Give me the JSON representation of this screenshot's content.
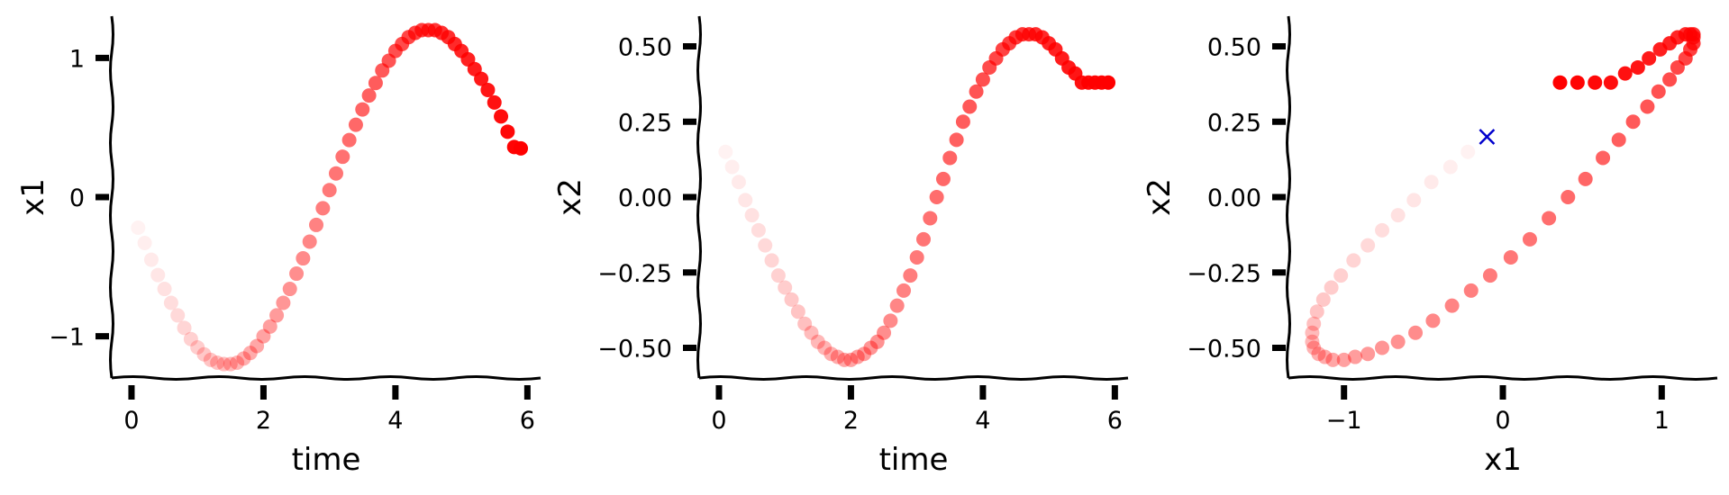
{
  "chart_data": [
    {
      "type": "scatter",
      "xlabel": "time",
      "ylabel": "x1",
      "xlim": [
        -0.3,
        6.2
      ],
      "ylim": [
        -1.3,
        1.3
      ],
      "xticks": [
        0,
        2,
        4,
        6
      ],
      "xtick_labels": [
        "0",
        "2",
        "4",
        "6"
      ],
      "yticks": [
        -1,
        0,
        1
      ],
      "ytick_labels": [
        "−1",
        "0",
        "1"
      ],
      "grid": false,
      "legend": "none",
      "marker_color": "#ff0000",
      "opacity_gradient": "increasing with time, from faint to opaque",
      "x": [
        0.1,
        0.2,
        0.3,
        0.4,
        0.5,
        0.6,
        0.7,
        0.8,
        0.9,
        1.0,
        1.1,
        1.2,
        1.3,
        1.4,
        1.5,
        1.6,
        1.7,
        1.8,
        1.9,
        2.0,
        2.1,
        2.2,
        2.3,
        2.4,
        2.5,
        2.6,
        2.7,
        2.8,
        2.9,
        3.0,
        3.1,
        3.2,
        3.3,
        3.4,
        3.5,
        3.6,
        3.7,
        3.8,
        3.9,
        4.0,
        4.1,
        4.2,
        4.3,
        4.4,
        4.5,
        4.6,
        4.7,
        4.8,
        4.9,
        5.0,
        5.1,
        5.2,
        5.3,
        5.4,
        5.5,
        5.6,
        5.7,
        5.8,
        5.9
      ],
      "y": [
        -0.22,
        -0.33,
        -0.45,
        -0.56,
        -0.66,
        -0.76,
        -0.85,
        -0.94,
        -1.02,
        -1.08,
        -1.13,
        -1.17,
        -1.19,
        -1.2,
        -1.2,
        -1.19,
        -1.16,
        -1.12,
        -1.07,
        -1.0,
        -0.93,
        -0.85,
        -0.76,
        -0.66,
        -0.55,
        -0.44,
        -0.32,
        -0.2,
        -0.08,
        0.05,
        0.17,
        0.29,
        0.41,
        0.52,
        0.63,
        0.73,
        0.82,
        0.91,
        0.98,
        1.05,
        1.1,
        1.15,
        1.18,
        1.2,
        1.2,
        1.2,
        1.18,
        1.15,
        1.1,
        1.05,
        0.99,
        0.92,
        0.85,
        0.77,
        0.68,
        0.58,
        0.47,
        0.36,
        0.35
      ]
    },
    {
      "type": "scatter",
      "xlabel": "time",
      "ylabel": "x2",
      "xlim": [
        -0.3,
        6.2
      ],
      "ylim": [
        -0.6,
        0.6
      ],
      "xticks": [
        0,
        2,
        4,
        6
      ],
      "xtick_labels": [
        "0",
        "2",
        "4",
        "6"
      ],
      "yticks": [
        -0.5,
        -0.25,
        0,
        0.25,
        0.5
      ],
      "ytick_labels": [
        "−0.50",
        "−0.25",
        "0.00",
        "0.25",
        "0.50"
      ],
      "grid": false,
      "legend": "none",
      "marker_color": "#ff0000",
      "opacity_gradient": "increasing with time, from faint to opaque",
      "x": [
        0.1,
        0.2,
        0.3,
        0.4,
        0.5,
        0.6,
        0.7,
        0.8,
        0.9,
        1.0,
        1.1,
        1.2,
        1.3,
        1.4,
        1.5,
        1.6,
        1.7,
        1.8,
        1.9,
        2.0,
        2.1,
        2.2,
        2.3,
        2.4,
        2.5,
        2.6,
        2.7,
        2.8,
        2.9,
        3.0,
        3.1,
        3.2,
        3.3,
        3.4,
        3.5,
        3.6,
        3.7,
        3.8,
        3.9,
        4.0,
        4.1,
        4.2,
        4.3,
        4.4,
        4.5,
        4.6,
        4.7,
        4.8,
        4.9,
        5.0,
        5.1,
        5.2,
        5.3,
        5.4,
        5.5,
        5.6,
        5.7,
        5.8,
        5.9
      ],
      "y": [
        0.15,
        0.1,
        0.05,
        -0.01,
        -0.06,
        -0.11,
        -0.16,
        -0.21,
        -0.26,
        -0.3,
        -0.34,
        -0.38,
        -0.42,
        -0.45,
        -0.48,
        -0.5,
        -0.52,
        -0.53,
        -0.54,
        -0.54,
        -0.53,
        -0.52,
        -0.5,
        -0.48,
        -0.45,
        -0.41,
        -0.36,
        -0.31,
        -0.26,
        -0.2,
        -0.14,
        -0.07,
        0.0,
        0.06,
        0.13,
        0.19,
        0.25,
        0.3,
        0.35,
        0.39,
        0.43,
        0.46,
        0.49,
        0.51,
        0.53,
        0.54,
        0.54,
        0.54,
        0.53,
        0.51,
        0.49,
        0.46,
        0.43,
        0.41,
        0.38,
        0.38,
        0.38,
        0.38,
        0.38
      ]
    },
    {
      "type": "scatter",
      "xlabel": "x1",
      "ylabel": "x2",
      "xlim": [
        -1.35,
        1.35
      ],
      "ylim": [
        -0.6,
        0.6
      ],
      "xticks": [
        -1,
        0,
        1
      ],
      "xtick_labels": [
        "−1",
        "0",
        "1"
      ],
      "yticks": [
        -0.5,
        -0.25,
        0,
        0.25,
        0.5
      ],
      "ytick_labels": [
        "−0.50",
        "−0.25",
        "0.00",
        "0.25",
        "0.50"
      ],
      "grid": false,
      "legend": "none",
      "marker_color": "#ff0000",
      "opacity_gradient": "increasing along trajectory, from faint to opaque",
      "x": [
        -0.22,
        -0.33,
        -0.45,
        -0.56,
        -0.66,
        -0.76,
        -0.85,
        -0.94,
        -1.02,
        -1.08,
        -1.13,
        -1.17,
        -1.19,
        -1.2,
        -1.2,
        -1.19,
        -1.16,
        -1.12,
        -1.07,
        -1.0,
        -0.93,
        -0.85,
        -0.76,
        -0.66,
        -0.55,
        -0.44,
        -0.32,
        -0.2,
        -0.08,
        0.05,
        0.17,
        0.29,
        0.41,
        0.52,
        0.63,
        0.73,
        0.82,
        0.91,
        0.98,
        1.05,
        1.1,
        1.15,
        1.18,
        1.2,
        1.2,
        1.2,
        1.18,
        1.15,
        1.1,
        1.05,
        0.99,
        0.92,
        0.85,
        0.77,
        0.68,
        0.58,
        0.47,
        0.36
      ],
      "y": [
        0.15,
        0.1,
        0.05,
        -0.01,
        -0.06,
        -0.11,
        -0.16,
        -0.21,
        -0.26,
        -0.3,
        -0.34,
        -0.38,
        -0.42,
        -0.45,
        -0.48,
        -0.5,
        -0.52,
        -0.53,
        -0.54,
        -0.54,
        -0.53,
        -0.52,
        -0.5,
        -0.48,
        -0.45,
        -0.41,
        -0.36,
        -0.31,
        -0.26,
        -0.2,
        -0.14,
        -0.07,
        0.0,
        0.06,
        0.13,
        0.19,
        0.25,
        0.3,
        0.35,
        0.39,
        0.43,
        0.46,
        0.49,
        0.51,
        0.53,
        0.54,
        0.54,
        0.54,
        0.53,
        0.51,
        0.49,
        0.46,
        0.43,
        0.41,
        0.38,
        0.38,
        0.38,
        0.38
      ],
      "marker": {
        "symbol": "x",
        "color": "#0000cc",
        "x": -0.1,
        "y": 0.2
      }
    }
  ]
}
